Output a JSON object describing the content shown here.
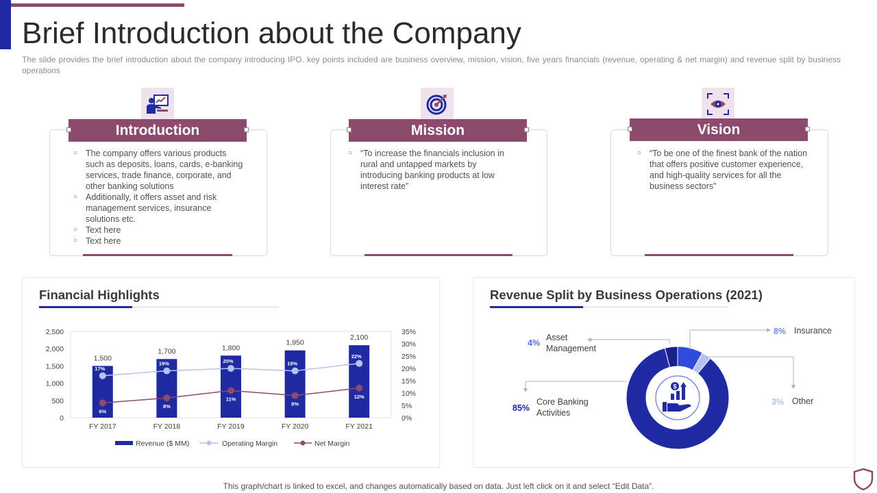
{
  "header": {
    "title": "Brief Introduction about the Company",
    "subtitle": "The slide provides the brief introduction about the company introducing IPO. key points included are business overview, mission, vision, five years financials (revenue, operating & net margin) and revenue split by business operations"
  },
  "cards": [
    {
      "title": "Introduction",
      "icon": "presentation-icon",
      "bullets": [
        "The company offers various products such as deposits, loans, cards, e-banking services, trade finance, corporate, and other banking solutions",
        "Additionally, it offers asset and risk management services, insurance solutions etc.",
        "Text here",
        "Text here"
      ]
    },
    {
      "title": "Mission",
      "icon": "target-icon",
      "bullets": [
        "“To increase the financials inclusion in rural and untapped markets by introducing banking products at low interest rate”"
      ]
    },
    {
      "title": "Vision",
      "icon": "eye-focus-icon",
      "bullets": [
        "“To be one of the finest bank of the nation that offers positive customer experience, and high-quality services for all the business sectors”"
      ]
    }
  ],
  "financial": {
    "title": "Financial Highlights"
  },
  "revenue_split": {
    "title": "Revenue Split by Business Operations (2021)"
  },
  "chart_data": [
    {
      "type": "bar",
      "title": "Financial Highlights",
      "categories": [
        "FY 2017",
        "FY 2018",
        "FY 2019",
        "FY 2020",
        "FY 2021"
      ],
      "left_ticks": [
        "2,500",
        "2,000",
        "1,500",
        "1,000",
        "500",
        "0"
      ],
      "right_ticks": [
        "35%",
        "30%",
        "25%",
        "20%",
        "15%",
        "10%",
        "5%",
        "0%"
      ],
      "ylim": [
        0,
        2500
      ],
      "y2lim": [
        0,
        35
      ],
      "series": [
        {
          "name": "Revenue ($ MM)",
          "kind": "bar",
          "color": "#1f2aa3",
          "values": [
            1500,
            1700,
            1800,
            1950,
            2100
          ],
          "labels": [
            "1,500",
            "1,700",
            "1,800",
            "1,950",
            "2,100"
          ]
        },
        {
          "name": "Operating Margin",
          "kind": "line",
          "color": "#b4c4f0",
          "values": [
            17,
            19,
            20,
            19,
            22
          ],
          "labels": [
            "17%",
            "19%",
            "20%",
            "19%",
            "22%"
          ]
        },
        {
          "name": "Net Margin",
          "kind": "line",
          "color": "#8c4b6c",
          "values": [
            6,
            8,
            11,
            9,
            12
          ],
          "labels": [
            "6%",
            "8%",
            "11%",
            "9%",
            "12%"
          ]
        }
      ],
      "legend": "bottom"
    },
    {
      "type": "pie",
      "title": "Revenue Split by Business Operations (2021)",
      "slices": [
        {
          "label": "Core Banking Activities",
          "display": "Core Banking\nActivities",
          "value": 85,
          "pct": "85%",
          "color": "#1f2aa3"
        },
        {
          "label": "Asset Management",
          "display": "Asset\nManagement",
          "value": 4,
          "pct": "4%",
          "color": "#172189"
        },
        {
          "label": "Insurance",
          "display": "Insurance",
          "value": 8,
          "pct": "8%",
          "color": "#2e4bdb"
        },
        {
          "label": "Other",
          "display": "Other",
          "value": 3,
          "pct": "3%",
          "color": "#b3c2f2"
        }
      ],
      "center_icon": "money-growth-hand-icon"
    }
  ],
  "footer": {
    "note": "This graph/chart is linked to excel, and changes automatically based on data. Just left click on it and select “Edit Data”."
  },
  "colors": {
    "accent_blue": "#1f2aa3",
    "accent_plum": "#8c4b6c",
    "icon_bg": "#efe2ec"
  }
}
